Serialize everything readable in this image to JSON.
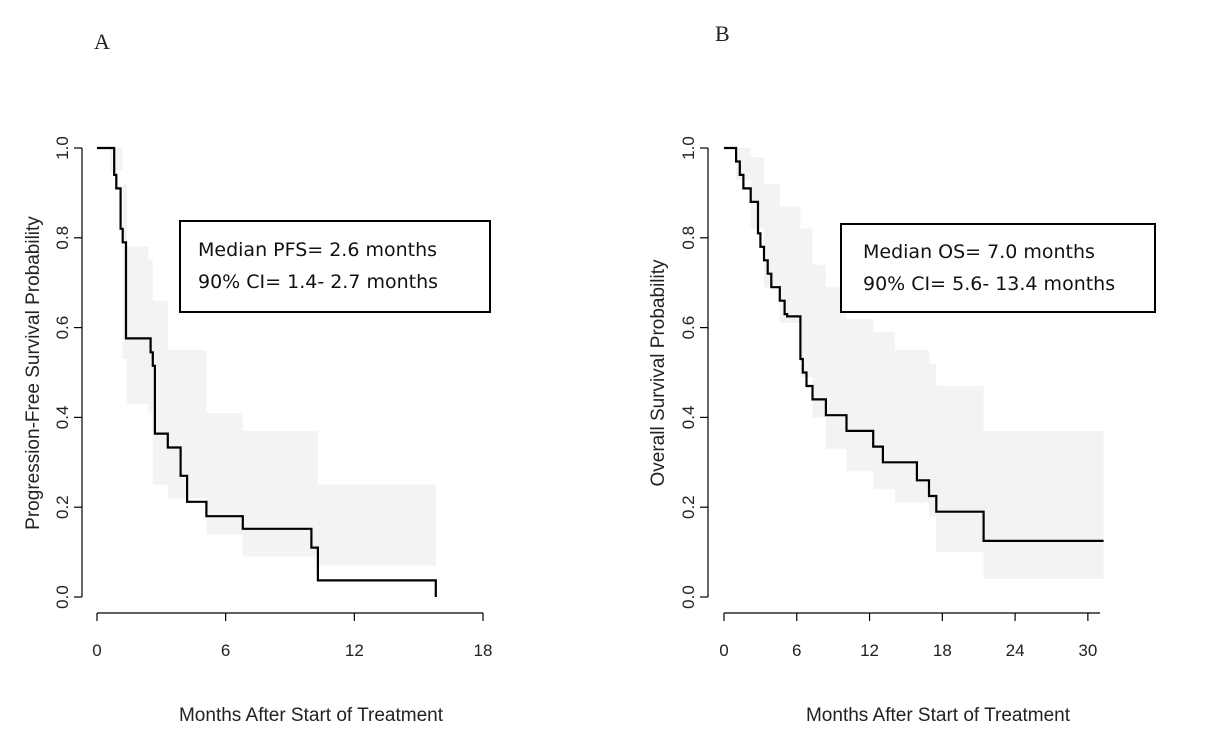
{
  "chart_data": [
    {
      "type": "line",
      "panel_label": "A",
      "xlabel": "Months After Start of Treatment",
      "ylabel": "Progression-Free Survival Probability",
      "xlim": [
        0,
        18
      ],
      "ylim": [
        0,
        1
      ],
      "xticks": [
        0,
        6,
        12,
        18
      ],
      "yticks": [
        "0.0",
        "0.2",
        "0.4",
        "0.6",
        "0.8",
        "1.0"
      ],
      "annotation": [
        "Median PFS= 2.6 months",
        "90% CI= 1.4- 2.7 months"
      ],
      "series": [
        {
          "style": "step",
          "x": [
            0,
            0.5,
            0.8,
            0.9,
            1.1,
            1.2,
            1.35,
            2.3,
            2.5,
            2.6,
            2.7,
            3.3,
            3.9,
            4.2,
            5.1,
            6.8,
            10.0,
            10.3,
            15.8
          ],
          "y": [
            1.0,
            1.0,
            0.94,
            0.91,
            0.82,
            0.79,
            0.576,
            0.576,
            0.545,
            0.515,
            0.364,
            0.333,
            0.27,
            0.212,
            0.18,
            0.152,
            0.11,
            0.037,
            0.037
          ],
          "end": 15.8,
          "end_drop_to": 0.0
        }
      ],
      "ci_band": {
        "x": [
          0,
          0.6,
          1.2,
          1.4,
          2.4,
          2.6,
          3.3,
          5.1,
          6.8,
          10.3,
          15.8
        ],
        "upper": [
          1.0,
          1.0,
          0.92,
          0.78,
          0.75,
          0.66,
          0.55,
          0.41,
          0.37,
          0.25,
          0.25
        ],
        "lower": [
          1.0,
          0.95,
          0.53,
          0.43,
          0.41,
          0.25,
          0.22,
          0.14,
          0.09,
          0.07,
          0.0
        ]
      }
    },
    {
      "type": "line",
      "panel_label": "B",
      "xlabel": "Months After Start of Treatment",
      "ylabel": "Overall Survival Probability",
      "xlim": [
        0,
        31
      ],
      "ylim": [
        0,
        1
      ],
      "xticks": [
        0,
        6,
        12,
        18,
        24,
        30
      ],
      "yticks": [
        "0.0",
        "0.2",
        "0.4",
        "0.6",
        "0.8",
        "1.0"
      ],
      "annotation": [
        "Median OS= 7.0 months",
        "90% CI= 5.6- 13.4 months"
      ],
      "series": [
        {
          "style": "step",
          "x": [
            0,
            0.6,
            1.0,
            1.3,
            1.6,
            2.0,
            2.2,
            2.8,
            3.0,
            3.3,
            3.6,
            3.9,
            4.2,
            4.6,
            5.0,
            5.2,
            6.3,
            6.5,
            6.8,
            7.0,
            7.3,
            8.4,
            10.1,
            12.3,
            13.1,
            14.1,
            15.9,
            16.9,
            17.5,
            21.4,
            31.3
          ],
          "y": [
            1.0,
            1.0,
            0.97,
            0.94,
            0.91,
            0.91,
            0.88,
            0.81,
            0.78,
            0.75,
            0.72,
            0.69,
            0.69,
            0.66,
            0.63,
            0.625,
            0.53,
            0.5,
            0.47,
            0.47,
            0.44,
            0.405,
            0.37,
            0.335,
            0.3,
            0.3,
            0.26,
            0.225,
            0.19,
            0.125,
            0.125
          ],
          "end": 31.3
        }
      ],
      "ci_band": {
        "x": [
          0,
          1.0,
          2.2,
          3.3,
          4.6,
          6.3,
          7.3,
          8.4,
          10.1,
          12.3,
          14.1,
          16.9,
          17.5,
          21.4,
          31.3
        ],
        "upper": [
          1.0,
          1.0,
          0.98,
          0.92,
          0.87,
          0.82,
          0.74,
          0.69,
          0.62,
          0.59,
          0.55,
          0.52,
          0.47,
          0.37,
          0.37
        ],
        "lower": [
          1.0,
          0.93,
          0.82,
          0.69,
          0.61,
          0.49,
          0.4,
          0.33,
          0.28,
          0.24,
          0.21,
          0.18,
          0.1,
          0.04,
          0.04
        ]
      }
    }
  ]
}
